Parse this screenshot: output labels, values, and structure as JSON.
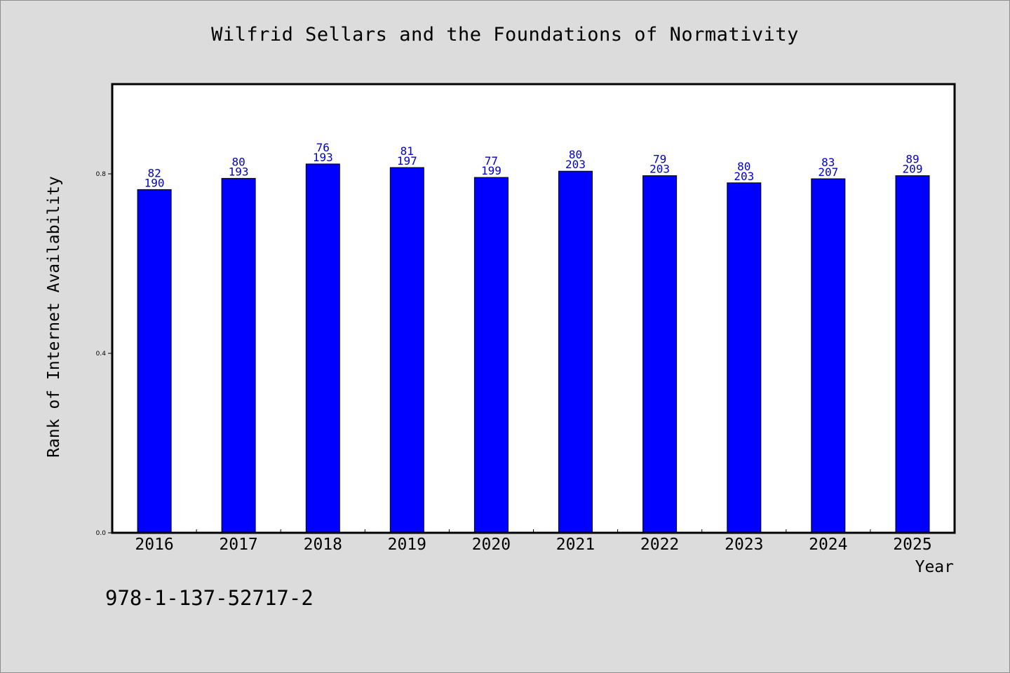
{
  "chart_data": {
    "type": "bar",
    "title": "Wilfrid Sellars and the Foundations of Normativity",
    "xlabel": "Year",
    "ylabel": "Rank of Internet Availability",
    "categories": [
      "2016",
      "2017",
      "2018",
      "2019",
      "2020",
      "2021",
      "2022",
      "2023",
      "2024",
      "2025"
    ],
    "values": [
      0.765,
      0.79,
      0.822,
      0.814,
      0.792,
      0.806,
      0.796,
      0.78,
      0.789,
      0.796
    ],
    "labels_top": [
      "82",
      "80",
      "76",
      "81",
      "77",
      "80",
      "79",
      "80",
      "83",
      "89"
    ],
    "labels_bottom": [
      "190",
      "193",
      "193",
      "197",
      "199",
      "203",
      "203",
      "203",
      "207",
      "209"
    ],
    "yticks": [
      0.0,
      0.4,
      0.8
    ],
    "ytick_labels": [
      "0.0",
      "0.4",
      "0.8"
    ],
    "ylim": [
      0,
      1.0
    ],
    "grid": false,
    "bar_color": "#0000ff",
    "label_color": "#0000cc",
    "background_color": "#dcdcdc",
    "plot_background": "#ffffff"
  },
  "footer": {
    "isbn": "978-1-137-52717-2"
  }
}
